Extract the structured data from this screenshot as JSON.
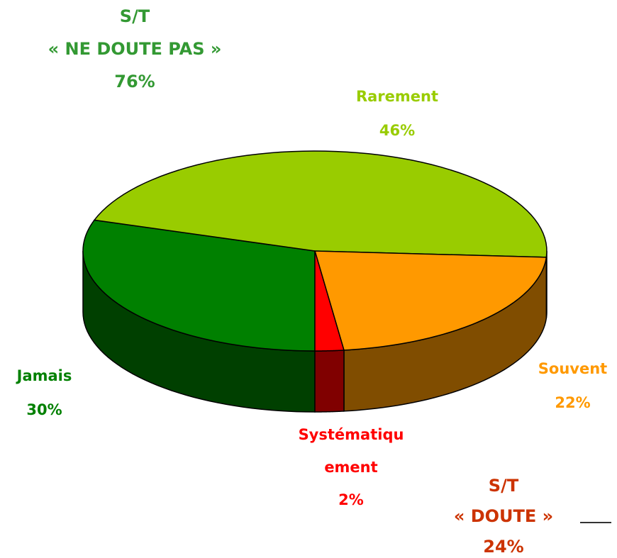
{
  "chart_data": {
    "type": "pie3d",
    "categories": [
      "Jamais",
      "Rarement",
      "Souvent",
      "Systématiquement"
    ],
    "values": [
      30,
      46,
      22,
      2
    ],
    "value_labels": [
      "30%",
      "46%",
      "22%",
      "2%"
    ],
    "colors": [
      "#008000",
      "#99cc00",
      "#ff9900",
      "#ff0000"
    ],
    "annotations": [
      {
        "title": "S/T",
        "subtitle": "« NE DOUTE PAS »",
        "label": "76%"
      },
      {
        "title": "S/T",
        "subtitle": "« DOUTE »",
        "label": "24%"
      }
    ]
  }
}
